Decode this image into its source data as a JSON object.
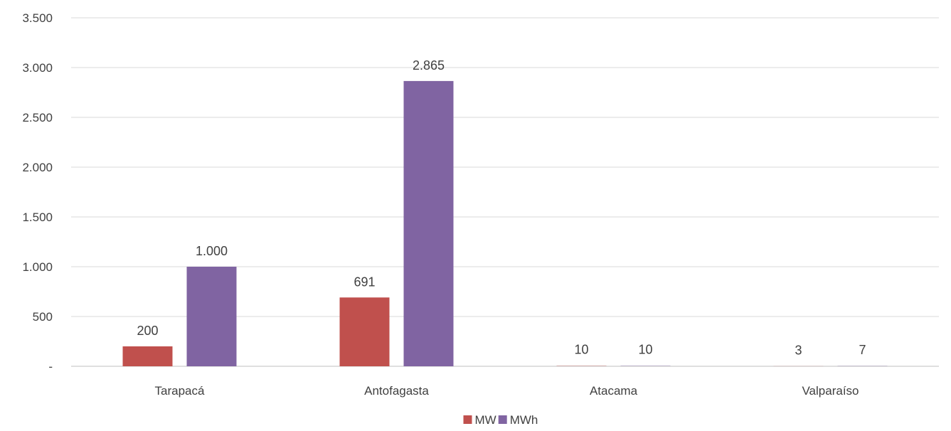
{
  "chart_data": {
    "type": "bar",
    "categories": [
      "Tarapacá",
      "Antofagasta",
      "Atacama",
      "Valparaíso"
    ],
    "series": [
      {
        "name": "MW",
        "color": "#c0504d",
        "values": [
          200,
          691,
          10,
          3
        ],
        "labels": [
          "200",
          "691",
          "10",
          "3"
        ]
      },
      {
        "name": "MWh",
        "color": "#8064a2",
        "values": [
          1000,
          2865,
          10,
          7
        ],
        "labels": [
          "1.000",
          "2.865",
          "10",
          "7"
        ]
      }
    ],
    "ylim": [
      0,
      3500
    ],
    "yticks": [
      0,
      500,
      1000,
      1500,
      2000,
      2500,
      3000,
      3500
    ],
    "ytick_labels": [
      "-",
      "500",
      "1.000",
      "1.500",
      "2.000",
      "2.500",
      "3.000",
      "3.500"
    ],
    "grid": true,
    "legend": "bottom-center",
    "gridline_color": "#d9d9d9",
    "axis_color": "#bfbfbf"
  }
}
